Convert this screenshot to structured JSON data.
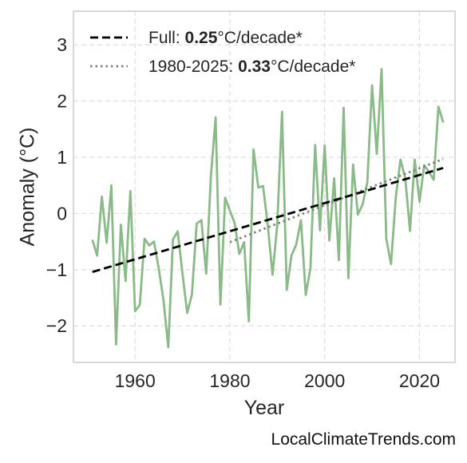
{
  "chart_data": {
    "type": "line",
    "xlabel": "Year",
    "ylabel": "Anomaly (°C)",
    "xlim": [
      1947,
      2027.5
    ],
    "ylim": [
      -2.65,
      3.6
    ],
    "xticks": [
      1960,
      1980,
      2000,
      2020
    ],
    "yticks": [
      -2,
      -1,
      0,
      1,
      2,
      3
    ],
    "ytick_labels": [
      "−2",
      "−1",
      "0",
      "1",
      "2",
      "3"
    ],
    "grid": true,
    "legend_position": "top-left",
    "colors": {
      "series": "#8aba87",
      "full_trend": "#000000",
      "recent_trend": "#808080"
    },
    "series": [
      {
        "x": [
          1951,
          1952,
          1953,
          1954,
          1955,
          1956,
          1957,
          1958,
          1959,
          1960,
          1961,
          1962,
          1963,
          1964,
          1965,
          1966,
          1967,
          1968,
          1969,
          1970,
          1971,
          1972,
          1973,
          1974,
          1975,
          1976,
          1977,
          1978,
          1979,
          1980,
          1981,
          1982,
          1983,
          1984,
          1985,
          1986,
          1987,
          1988,
          1989,
          1990,
          1991,
          1992,
          1993,
          1994,
          1995,
          1996,
          1997,
          1998,
          1999,
          2000,
          2001,
          2002,
          2003,
          2004,
          2005,
          2006,
          2007,
          2008,
          2009,
          2010,
          2011,
          2012,
          2013,
          2014,
          2015,
          2016,
          2017,
          2018,
          2019,
          2020,
          2021,
          2022,
          2023,
          2024,
          2025
        ],
        "y": [
          -0.47,
          -0.75,
          0.3,
          -0.52,
          0.5,
          -2.33,
          -0.2,
          -1.2,
          0.4,
          -1.74,
          -1.63,
          -0.45,
          -0.57,
          -0.5,
          -0.98,
          -1.54,
          -2.38,
          -0.46,
          -0.32,
          -1.07,
          -1.77,
          -1.44,
          -0.18,
          -0.12,
          -1.07,
          0.67,
          1.71,
          -1.62,
          0.28,
          0.05,
          -0.17,
          -0.72,
          -0.51,
          -1.92,
          1.14,
          0.46,
          0.49,
          -0.22,
          -1.09,
          -0.2,
          1.81,
          -1.36,
          -0.75,
          -0.55,
          -0.12,
          -1.45,
          -0.97,
          1.22,
          -0.3,
          1.21,
          -0.48,
          0.63,
          -0.83,
          1.88,
          -1.15,
          0.87,
          -0.02,
          0.16,
          0.55,
          2.28,
          1.06,
          2.57,
          -0.45,
          -0.9,
          0.29,
          0.96,
          0.62,
          -0.31,
          0.96,
          0.21,
          0.86,
          0.74,
          0.6,
          1.9,
          1.62
        ]
      }
    ],
    "trends": [
      {
        "label_prefix": "Full: ",
        "label_value": "0.25",
        "label_suffix": "°C/decade*",
        "x": [
          1951,
          2025
        ],
        "y": [
          -1.04,
          0.81
        ],
        "style": "dashed"
      },
      {
        "label_prefix": "1980-2025: ",
        "label_value": "0.33",
        "label_suffix": "°C/decade*",
        "x": [
          1980,
          2025
        ],
        "y": [
          -0.51,
          0.97
        ],
        "style": "dotted"
      }
    ]
  },
  "footer": {
    "text": "LocalClimateTrends.com"
  }
}
